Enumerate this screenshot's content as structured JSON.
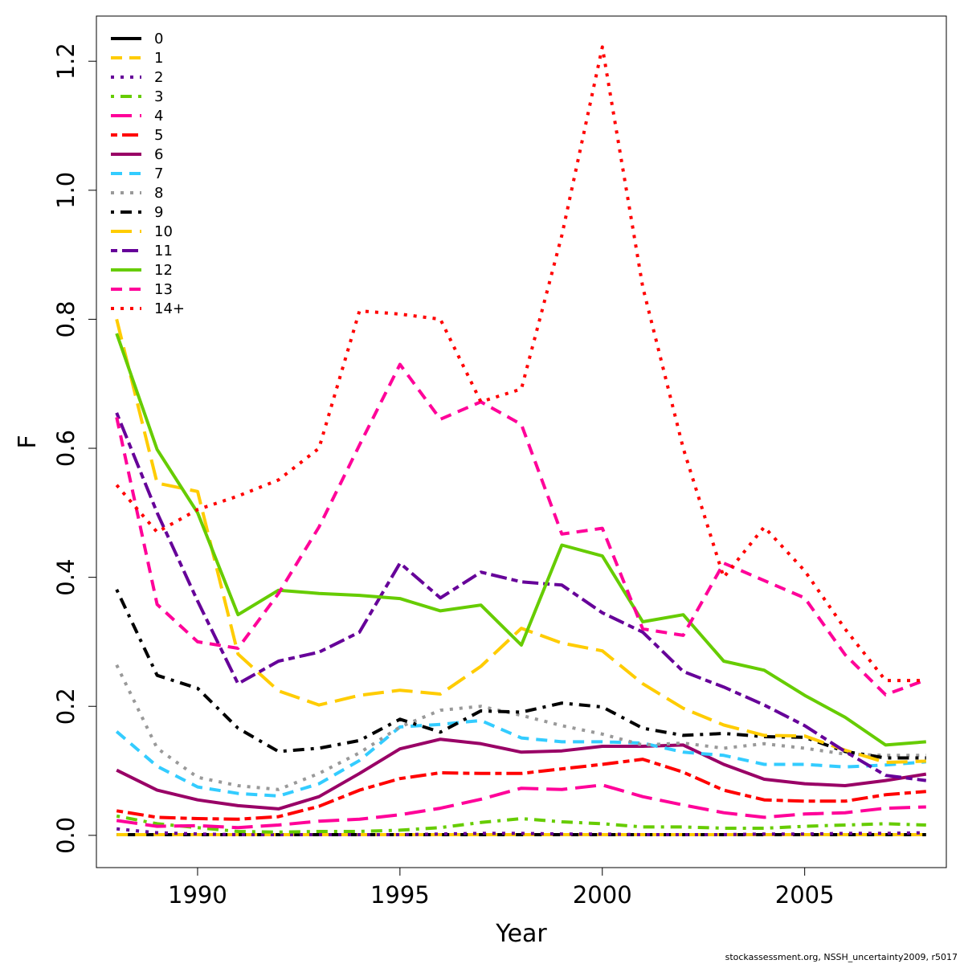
{
  "chart_data": {
    "type": "line",
    "xlabel": "Year",
    "ylabel": "F",
    "xlim": [
      1987.5,
      2008.5
    ],
    "ylim": [
      -0.05,
      1.27
    ],
    "x_ticks": [
      1990,
      1995,
      2000,
      2005
    ],
    "y_ticks": [
      0.0,
      0.2,
      0.4,
      0.6,
      0.8,
      1.0,
      1.2
    ],
    "y_tick_labels": [
      "0.0",
      "0.2",
      "0.4",
      "0.6",
      "0.8",
      "1.0",
      "1.2"
    ],
    "x_tick_labels": [
      "1990",
      "1995",
      "2000",
      "2005"
    ],
    "grid": false,
    "legend_position": "top-left",
    "x": [
      1988,
      1989,
      1990,
      1991,
      1992,
      1993,
      1994,
      1995,
      1996,
      1997,
      1998,
      1999,
      2000,
      2001,
      2002,
      2003,
      2004,
      2005,
      2006,
      2007,
      2008
    ],
    "series": [
      {
        "name": "0",
        "color": "#000000",
        "dash": "solid",
        "values": [
          0.001,
          0.001,
          0.001,
          0.001,
          0.001,
          0.001,
          0.001,
          0.001,
          0.001,
          0.001,
          0.001,
          0.001,
          0.001,
          0.001,
          0.001,
          0.001,
          0.001,
          0.001,
          0.001,
          0.001,
          0.001
        ]
      },
      {
        "name": "1",
        "color": "#FFCC00",
        "dash": "dashed",
        "values": [
          0.001,
          0.001,
          0.001,
          0.001,
          0.001,
          0.001,
          0.001,
          0.001,
          0.001,
          0.001,
          0.001,
          0.001,
          0.001,
          0.001,
          0.001,
          0.001,
          0.001,
          0.001,
          0.001,
          0.001,
          0.001
        ]
      },
      {
        "name": "2",
        "color": "#660099",
        "dash": "dotted",
        "values": [
          0.01,
          0.004,
          0.002,
          0.001,
          0.001,
          0.001,
          0.001,
          0.001,
          0.002,
          0.003,
          0.003,
          0.002,
          0.002,
          0.001,
          0.001,
          0.001,
          0.002,
          0.002,
          0.003,
          0.003,
          0.004
        ]
      },
      {
        "name": "3",
        "color": "#66CC00",
        "dash": "dotdash",
        "values": [
          0.03,
          0.018,
          0.012,
          0.006,
          0.005,
          0.006,
          0.006,
          0.008,
          0.012,
          0.02,
          0.026,
          0.021,
          0.018,
          0.013,
          0.013,
          0.011,
          0.011,
          0.014,
          0.016,
          0.018,
          0.016
        ]
      },
      {
        "name": "4",
        "color": "#FF0099",
        "dash": "longdash",
        "values": [
          0.023,
          0.014,
          0.015,
          0.012,
          0.016,
          0.022,
          0.025,
          0.032,
          0.042,
          0.056,
          0.073,
          0.071,
          0.078,
          0.06,
          0.047,
          0.035,
          0.028,
          0.033,
          0.035,
          0.042,
          0.044
        ]
      },
      {
        "name": "5",
        "color": "#FF0000",
        "dash": "twodash",
        "values": [
          0.038,
          0.028,
          0.026,
          0.025,
          0.029,
          0.045,
          0.07,
          0.088,
          0.097,
          0.096,
          0.096,
          0.103,
          0.11,
          0.118,
          0.098,
          0.07,
          0.055,
          0.053,
          0.053,
          0.063,
          0.068
        ]
      },
      {
        "name": "6",
        "color": "#990066",
        "dash": "solid",
        "values": [
          0.101,
          0.07,
          0.055,
          0.046,
          0.041,
          0.06,
          0.096,
          0.134,
          0.149,
          0.142,
          0.129,
          0.131,
          0.138,
          0.138,
          0.14,
          0.11,
          0.087,
          0.08,
          0.077,
          0.085,
          0.095
        ]
      },
      {
        "name": "7",
        "color": "#33CCFF",
        "dash": "dashed",
        "values": [
          0.161,
          0.107,
          0.075,
          0.065,
          0.061,
          0.08,
          0.116,
          0.168,
          0.172,
          0.178,
          0.151,
          0.145,
          0.145,
          0.143,
          0.129,
          0.124,
          0.11,
          0.11,
          0.106,
          0.109,
          0.114
        ]
      },
      {
        "name": "8",
        "color": "#999999",
        "dash": "dotted",
        "values": [
          0.264,
          0.135,
          0.09,
          0.077,
          0.071,
          0.096,
          0.128,
          0.168,
          0.194,
          0.2,
          0.186,
          0.17,
          0.157,
          0.14,
          0.143,
          0.135,
          0.142,
          0.135,
          0.126,
          0.124,
          0.124
        ]
      },
      {
        "name": "9",
        "color": "#000000",
        "dash": "dotdash",
        "values": [
          0.381,
          0.248,
          0.228,
          0.166,
          0.13,
          0.135,
          0.147,
          0.18,
          0.16,
          0.193,
          0.191,
          0.205,
          0.199,
          0.166,
          0.155,
          0.158,
          0.153,
          0.152,
          0.13,
          0.12,
          0.12
        ]
      },
      {
        "name": "10",
        "color": "#FFCC00",
        "dash": "longdash",
        "values": [
          0.8,
          0.546,
          0.533,
          0.281,
          0.224,
          0.202,
          0.217,
          0.225,
          0.219,
          0.262,
          0.321,
          0.298,
          0.286,
          0.235,
          0.197,
          0.171,
          0.155,
          0.154,
          0.132,
          0.113,
          0.115
        ]
      },
      {
        "name": "11",
        "color": "#660099",
        "dash": "twodash",
        "values": [
          0.655,
          0.5,
          0.363,
          0.235,
          0.27,
          0.284,
          0.315,
          0.422,
          0.368,
          0.408,
          0.393,
          0.388,
          0.345,
          0.315,
          0.254,
          0.23,
          0.202,
          0.17,
          0.13,
          0.093,
          0.085
        ]
      },
      {
        "name": "12",
        "color": "#66CC00",
        "dash": "solid",
        "values": [
          0.778,
          0.598,
          0.5,
          0.342,
          0.38,
          0.375,
          0.372,
          0.367,
          0.348,
          0.357,
          0.295,
          0.45,
          0.433,
          0.331,
          0.342,
          0.27,
          0.256,
          0.217,
          0.183,
          0.14,
          0.145
        ]
      },
      {
        "name": "13",
        "color": "#FF0099",
        "dash": "dashed",
        "values": [
          0.648,
          0.358,
          0.3,
          0.29,
          0.375,
          0.478,
          0.605,
          0.73,
          0.645,
          0.672,
          0.637,
          0.467,
          0.476,
          0.32,
          0.31,
          0.422,
          0.395,
          0.368,
          0.28,
          0.218,
          0.241
        ]
      },
      {
        "name": "14+",
        "color": "#FF0000",
        "dash": "dotted",
        "values": [
          0.543,
          0.47,
          0.505,
          0.526,
          0.551,
          0.6,
          0.813,
          0.808,
          0.8,
          0.672,
          0.692,
          0.93,
          1.222,
          0.85,
          0.6,
          0.4,
          0.478,
          0.41,
          0.32,
          0.24,
          0.24
        ]
      }
    ]
  },
  "footer": {
    "credit": "stockassessment.org, NSSH_uncertainty2009, r5017"
  }
}
